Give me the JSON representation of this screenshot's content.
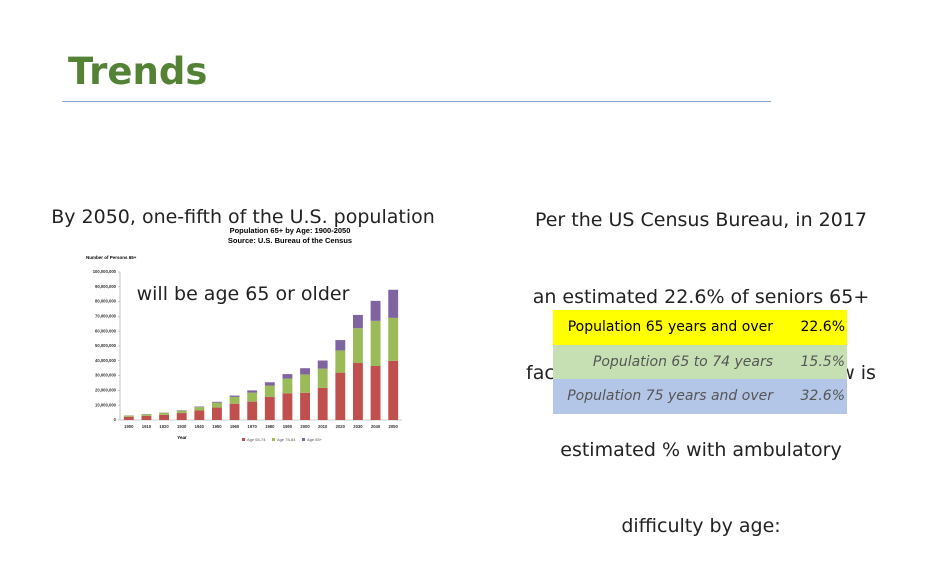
{
  "title": "Trends",
  "left_text": [
    "By 2050, one-fifth of the U.S. population",
    "will be age 65 or older"
  ],
  "right_text": [
    "Per the US Census Bureau, in 2017",
    "an estimated 22.6% of seniors 65+",
    "faced ambulatory difficulty.  Below is",
    "estimated % with ambulatory",
    "difficulty by age:"
  ],
  "chart_data": {
    "type": "stacked_bar",
    "title": "Population 65+ by Age: 1900-2050",
    "subtitle": "Source: U.S. Bureau of the Census",
    "y_label": "Number of Persons 65+",
    "x_label": "Year",
    "categories": [
      "1900",
      "1910",
      "1920",
      "1930",
      "1940",
      "1950",
      "1960",
      "1970",
      "1980",
      "1990",
      "2000",
      "2010",
      "2020",
      "2030",
      "2040",
      "2050"
    ],
    "series": [
      {
        "name": "Age 65-74",
        "color": "#c0504d",
        "values": [
          2200000,
          2800000,
          3500000,
          4700000,
          6400000,
          8400000,
          11000000,
          12400000,
          15600000,
          18000000,
          18400000,
          21700000,
          32000000,
          38500000,
          36500000,
          40000000
        ]
      },
      {
        "name": "Age 75-84",
        "color": "#9bbb59",
        "values": [
          800000,
          1000000,
          1300000,
          1600000,
          2300000,
          3300000,
          4600000,
          6100000,
          7700000,
          10000000,
          12400000,
          13000000,
          15000000,
          23500000,
          30500000,
          29000000
        ]
      },
      {
        "name": "Age 85+",
        "color": "#8064a2",
        "values": [
          100000,
          200000,
          200000,
          300000,
          400000,
          600000,
          900000,
          1500000,
          2200000,
          3000000,
          4200000,
          5500000,
          7000000,
          9000000,
          13500000,
          19000000
        ]
      }
    ],
    "ylim": [
      0,
      100000000
    ],
    "yticks": [
      0,
      {
        "value": 10000000,
        "label": "10,000,000"
      },
      {
        "value": 20000000,
        "label": "20,000,000"
      },
      {
        "value": 30000000,
        "label": "30,000,000"
      },
      {
        "value": 40000000,
        "label": "40,000,000"
      },
      {
        "value": 50000000,
        "label": "50,000,000"
      },
      {
        "value": 60000000,
        "label": "60,000,000"
      },
      {
        "value": 70000000,
        "label": "70,000,000"
      },
      {
        "value": 80000000,
        "label": "80,000,000"
      },
      {
        "value": 90000000,
        "label": "90,000,000"
      },
      {
        "value": 100000000,
        "label": "100,000,000"
      }
    ],
    "grid": false
  },
  "table": {
    "rows": [
      [
        "Population 65 years and over",
        "22.6%"
      ],
      [
        "Population 65 to 74 years",
        "15.5%"
      ],
      [
        "Population 75 years and over",
        "32.6%"
      ]
    ]
  }
}
